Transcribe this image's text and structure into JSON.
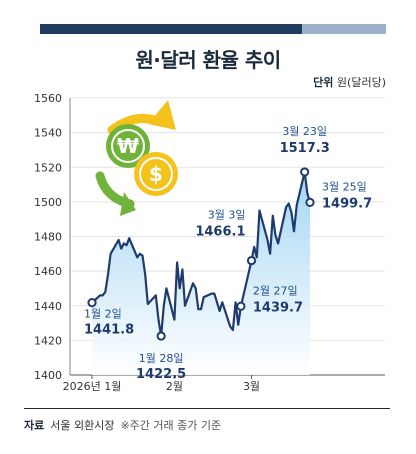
{
  "header": {
    "title": "원·달러 환율 추이",
    "unit_label": "단위",
    "unit_value": "원(달러당)"
  },
  "footer": {
    "source_label": "자료",
    "source_value": "서울 외환시장",
    "note": "※주간 거래 종가 기준"
  },
  "colors": {
    "line": "#1f3b6e",
    "area_top": "#9fd3f2",
    "area_bottom": "#ffffff",
    "marker_fill": "#ffffff",
    "topbar_dark": "#1f3b5e",
    "topbar_light": "#9bb1c7",
    "icon_green": "#6fb33a",
    "icon_yellow": "#f4c21a"
  },
  "icon": {
    "name": "currency-exchange-icon"
  },
  "chart_data": {
    "type": "line",
    "ylim": [
      1400,
      1560
    ],
    "yticks": [
      1400,
      1420,
      1440,
      1460,
      1480,
      1500,
      1520,
      1540,
      1560
    ],
    "xticks": [
      {
        "label": "2026년 1월",
        "x": "2026-01-02"
      },
      {
        "label": "2월",
        "x": "2026-02-02"
      },
      {
        "label": "3월",
        "x": "2026-03-03"
      }
    ],
    "x": [
      "2026-01-02",
      "2026-01-05",
      "2026-01-06",
      "2026-01-07",
      "2026-01-08",
      "2026-01-09",
      "2026-01-12",
      "2026-01-13",
      "2026-01-14",
      "2026-01-15",
      "2026-01-16",
      "2026-01-19",
      "2026-01-20",
      "2026-01-21",
      "2026-01-22",
      "2026-01-23",
      "2026-01-26",
      "2026-01-27",
      "2026-01-28",
      "2026-01-29",
      "2026-01-30",
      "2026-02-02",
      "2026-02-03",
      "2026-02-04",
      "2026-02-05",
      "2026-02-06",
      "2026-02-09",
      "2026-02-10",
      "2026-02-11",
      "2026-02-12",
      "2026-02-13",
      "2026-02-16",
      "2026-02-17",
      "2026-02-18",
      "2026-02-19",
      "2026-02-20",
      "2026-02-23",
      "2026-02-24",
      "2026-02-25",
      "2026-02-26",
      "2026-02-27",
      "2026-03-03",
      "2026-03-04",
      "2026-03-05",
      "2026-03-06",
      "2026-03-09",
      "2026-03-10",
      "2026-03-11",
      "2026-03-12",
      "2026-03-13",
      "2026-03-16",
      "2026-03-17",
      "2026-03-18",
      "2026-03-19",
      "2026-03-20",
      "2026-03-23",
      "2026-03-24",
      "2026-03-25"
    ],
    "series": [
      {
        "values": [
          1441.8,
          1446,
          1446,
          1448,
          1458,
          1470,
          1478,
          1473,
          1476,
          1475,
          1479,
          1468,
          1470,
          1469,
          1458,
          1441,
          1446,
          1432,
          1422.5,
          1440,
          1450,
          1432,
          1465,
          1450,
          1461,
          1440,
          1453,
          1450,
          1438,
          1438,
          1445,
          1447,
          1447,
          1442,
          1437,
          1442,
          1428,
          1426,
          1442,
          1429,
          1439.7,
          1466.1,
          1474,
          1468,
          1495,
          1478,
          1470,
          1492,
          1481,
          1476,
          1497,
          1499,
          1494,
          1483,
          1498,
          1517.3,
          1505,
          1499.7
        ]
      }
    ],
    "annotations": [
      {
        "x": "2026-01-02",
        "date": "1월 2일",
        "value": "1441.8",
        "placement": "below-right"
      },
      {
        "x": "2026-01-28",
        "date": "1월 28일",
        "value": "1422.5",
        "placement": "below"
      },
      {
        "x": "2026-02-27",
        "date": "2월 27일",
        "value": "1439.7",
        "placement": "right"
      },
      {
        "x": "2026-03-03",
        "date": "3월 3일",
        "value": "1466.1",
        "placement": "above-left"
      },
      {
        "x": "2026-03-23",
        "date": "3월 23일",
        "value": "1517.3",
        "placement": "above"
      },
      {
        "x": "2026-03-25",
        "date": "3월 25일",
        "value": "1499.7",
        "placement": "right"
      }
    ]
  }
}
